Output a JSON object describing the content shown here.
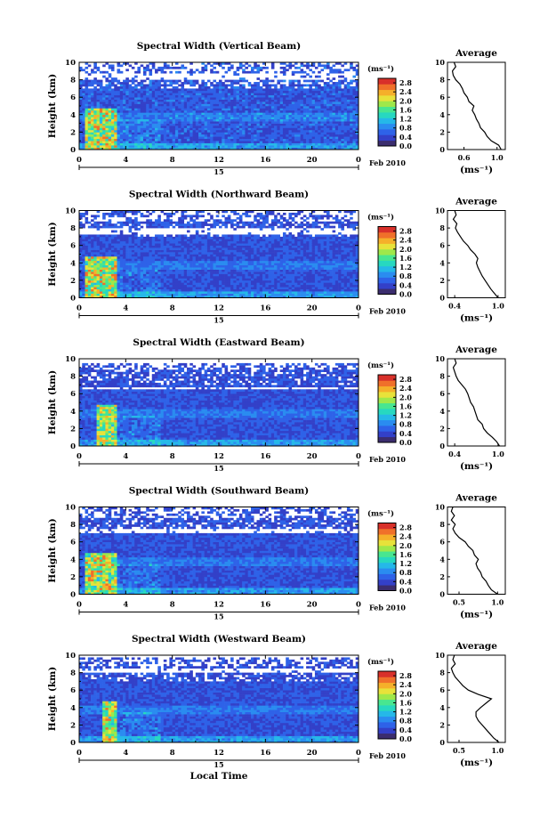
{
  "chart_data": [
    {
      "type": "heatmap",
      "title": "Spectral Width (Vertical Beam)",
      "ylabel": "Height (km)",
      "xlim": [
        0,
        24
      ],
      "ylim": [
        0,
        10
      ],
      "x_ticks": [
        "0",
        "4",
        "8",
        "12",
        "16",
        "20",
        "0"
      ],
      "y_ticks": [
        "0",
        "2",
        "4",
        "6",
        "8",
        "10"
      ],
      "date_bar": {
        "day": "15",
        "month_year": "Feb 2010"
      },
      "colorbar": {
        "unit": "(ms⁻¹)",
        "ticks": [
          "0.0",
          "0.4",
          "0.8",
          "1.2",
          "1.6",
          "2.0",
          "2.4",
          "2.8"
        ],
        "range": [
          0,
          3.0
        ]
      },
      "features": {
        "top_km": 10,
        "gap_km": [
          7.9,
          8.6
        ],
        "burst_hours": [
          0.5,
          3.0
        ],
        "burst_value": 2.7,
        "background_value": 0.55
      },
      "average_profile": {
        "title": "Average",
        "xlabel": "(ms⁻¹)",
        "x_ticks": [
          "0.6",
          "1.0"
        ],
        "xlim": [
          0.4,
          1.1
        ],
        "height_km": [
          0,
          0.5,
          1,
          1.5,
          2,
          2.5,
          3,
          3.5,
          4,
          4.5,
          5,
          5.5,
          6,
          6.5,
          7,
          7.5,
          8,
          8.5,
          9,
          9.5,
          10
        ],
        "values": [
          1.05,
          1.02,
          0.93,
          0.88,
          0.85,
          0.8,
          0.78,
          0.75,
          0.73,
          0.7,
          0.72,
          0.66,
          0.64,
          0.6,
          0.58,
          0.55,
          0.5,
          0.47,
          0.46,
          0.5,
          0.48
        ]
      }
    },
    {
      "type": "heatmap",
      "title": "Spectral Width (Northward Beam)",
      "ylabel": "Height (km)",
      "xlim": [
        0,
        24
      ],
      "ylim": [
        0,
        10
      ],
      "x_ticks": [
        "0",
        "4",
        "8",
        "12",
        "16",
        "20",
        "0"
      ],
      "y_ticks": [
        "0",
        "2",
        "4",
        "6",
        "8",
        "10"
      ],
      "date_bar": {
        "day": "15",
        "month_year": "Feb 2010"
      },
      "colorbar": {
        "unit": "(ms⁻¹)",
        "ticks": [
          "0.0",
          "0.4",
          "0.8",
          "1.2",
          "1.6",
          "2.0",
          "2.4",
          "2.8"
        ],
        "range": [
          0,
          3.0
        ]
      },
      "features": {
        "top_km": 10,
        "gap_km": [
          7.2,
          8.0
        ],
        "burst_hours": [
          0.5,
          3.0
        ],
        "burst_value": 2.7,
        "background_value": 0.5
      },
      "average_profile": {
        "title": "Average",
        "xlabel": "(ms⁻¹)",
        "x_ticks": [
          "0.4",
          "1.0"
        ],
        "xlim": [
          0.3,
          1.1
        ],
        "height_km": [
          0,
          0.5,
          1,
          1.5,
          2,
          2.5,
          3,
          3.5,
          4,
          4.5,
          5,
          5.5,
          6,
          6.5,
          7,
          7.5,
          8,
          8.5,
          9,
          9.5,
          10
        ],
        "values": [
          1.0,
          0.95,
          0.9,
          0.86,
          0.82,
          0.78,
          0.75,
          0.72,
          0.7,
          0.72,
          0.68,
          0.62,
          0.58,
          0.52,
          0.48,
          0.44,
          0.41,
          0.43,
          0.38,
          0.42,
          0.4
        ]
      }
    },
    {
      "type": "heatmap",
      "title": "Spectral Width (Eastward Beam)",
      "ylabel": "Height (km)",
      "xlim": [
        0,
        24
      ],
      "ylim": [
        0,
        10
      ],
      "x_ticks": [
        "0",
        "4",
        "8",
        "12",
        "16",
        "20",
        "0"
      ],
      "y_ticks": [
        "0",
        "2",
        "4",
        "6",
        "8",
        "10"
      ],
      "date_bar": {
        "day": "15",
        "month_year": "Feb 2010"
      },
      "colorbar": {
        "unit": "(ms⁻¹)",
        "ticks": [
          "0.0",
          "0.4",
          "0.8",
          "1.2",
          "1.6",
          "2.0",
          "2.4",
          "2.8"
        ],
        "range": [
          0,
          3.0
        ]
      },
      "features": {
        "top_km": 9.5,
        "gap_km": [
          6.3,
          6.7
        ],
        "burst_hours": [
          1.5,
          3.0
        ],
        "burst_value": 2.5,
        "background_value": 0.5
      },
      "average_profile": {
        "title": "Average",
        "xlabel": "(ms⁻¹)",
        "x_ticks": [
          "0.4",
          "1.0"
        ],
        "xlim": [
          0.3,
          1.1
        ],
        "height_km": [
          0,
          0.5,
          1,
          1.5,
          2,
          2.5,
          3,
          3.5,
          4,
          4.5,
          5,
          5.5,
          6,
          6.5,
          7,
          7.5,
          8,
          8.5,
          9,
          9.5,
          10
        ],
        "values": [
          1.02,
          0.98,
          0.92,
          0.85,
          0.8,
          0.78,
          0.72,
          0.7,
          0.68,
          0.66,
          0.62,
          0.6,
          0.58,
          0.55,
          0.5,
          0.45,
          0.42,
          0.4,
          0.38,
          0.42,
          0.4
        ]
      }
    },
    {
      "type": "heatmap",
      "title": "Spectral Width (Southward Beam)",
      "ylabel": "Height (km)",
      "xlim": [
        0,
        24
      ],
      "ylim": [
        0,
        10
      ],
      "x_ticks": [
        "0",
        "4",
        "8",
        "12",
        "16",
        "20",
        "0"
      ],
      "y_ticks": [
        "0",
        "2",
        "4",
        "6",
        "8",
        "10"
      ],
      "date_bar": {
        "day": "15",
        "month_year": "Feb 2010"
      },
      "colorbar": {
        "unit": "(ms⁻¹)",
        "ticks": [
          "0.0",
          "0.4",
          "0.8",
          "1.2",
          "1.6",
          "2.0",
          "2.4",
          "2.8"
        ],
        "range": [
          0,
          3.0
        ]
      },
      "features": {
        "top_km": 10,
        "gap_km": [
          7.0,
          7.4
        ],
        "burst_hours": [
          0.5,
          3.0
        ],
        "burst_value": 2.6,
        "background_value": 0.5
      },
      "average_profile": {
        "title": "Average",
        "xlabel": "(ms⁻¹)",
        "x_ticks": [
          "0.5",
          "1.0"
        ],
        "xlim": [
          0.35,
          1.1
        ],
        "height_km": [
          0,
          0.5,
          1,
          1.5,
          2,
          2.5,
          3,
          3.5,
          4,
          4.5,
          5,
          5.5,
          6,
          6.5,
          7,
          7.5,
          8,
          8.5,
          9,
          9.5,
          10
        ],
        "values": [
          1.0,
          0.92,
          0.88,
          0.85,
          0.8,
          0.78,
          0.74,
          0.72,
          0.75,
          0.7,
          0.68,
          0.62,
          0.58,
          0.5,
          0.45,
          0.42,
          0.45,
          0.4,
          0.44,
          0.4,
          0.42
        ]
      }
    },
    {
      "type": "heatmap",
      "title": "Spectral Width (Westward Beam)",
      "ylabel": "Height (km)",
      "xlabel": "Local Time",
      "xlim": [
        0,
        24
      ],
      "ylim": [
        0,
        10
      ],
      "x_ticks": [
        "0",
        "4",
        "8",
        "12",
        "16",
        "20",
        "0"
      ],
      "y_ticks": [
        "0",
        "2",
        "4",
        "6",
        "8",
        "10"
      ],
      "date_bar": {
        "day": "15",
        "month_year": "Feb 2010"
      },
      "colorbar": {
        "unit": "(ms⁻¹)",
        "ticks": [
          "0.0",
          "0.4",
          "0.8",
          "1.2",
          "1.6",
          "2.0",
          "2.4",
          "2.8"
        ],
        "range": [
          0,
          3.0
        ]
      },
      "features": {
        "top_km": 9.7,
        "gap_km": [
          8.0,
          8.5
        ],
        "burst_hours": [
          1.8,
          3.0
        ],
        "burst_value": 2.6,
        "background_value": 0.5
      },
      "average_profile": {
        "title": "Average",
        "xlabel": "(ms⁻¹)",
        "x_ticks": [
          "0.5",
          "1.0"
        ],
        "xlim": [
          0.35,
          1.1
        ],
        "height_km": [
          0,
          0.5,
          1,
          1.5,
          2,
          2.5,
          3,
          3.5,
          4,
          4.5,
          5,
          5.5,
          6,
          6.5,
          7,
          7.5,
          8,
          8.5,
          9,
          9.5,
          10
        ],
        "values": [
          1.02,
          0.95,
          0.9,
          0.85,
          0.8,
          0.75,
          0.72,
          0.72,
          0.78,
          0.85,
          0.92,
          0.75,
          0.62,
          0.55,
          0.5,
          0.45,
          0.42,
          0.4,
          0.45,
          0.42,
          0.44
        ]
      }
    }
  ],
  "colors": {
    "scale": [
      "#3b2d6e",
      "#3340c8",
      "#2e62e8",
      "#2a8cf0",
      "#25b8e8",
      "#27d8c0",
      "#48e690",
      "#9fe84a",
      "#e8e23a",
      "#f5b02a",
      "#f0702a",
      "#d8302a"
    ]
  }
}
